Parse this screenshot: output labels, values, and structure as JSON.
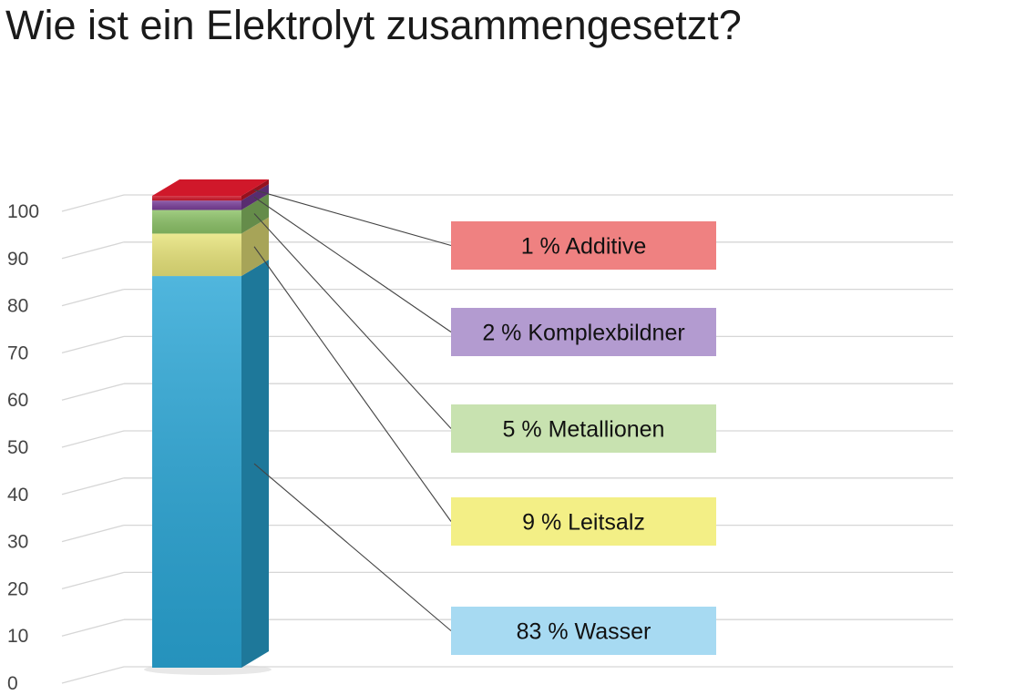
{
  "chart_data": {
    "type": "bar",
    "title": "Wie ist ein Elektrolyt zusammengesetzt?",
    "stacked": true,
    "view": "3d",
    "ylim": [
      0,
      100
    ],
    "yticks": [
      0,
      10,
      20,
      30,
      40,
      50,
      60,
      70,
      80,
      90,
      100
    ],
    "grid": true,
    "series": [
      {
        "label": "83 % Wasser",
        "value": 83,
        "color": "#2aa6d6",
        "label_color": "#a7daf2"
      },
      {
        "label": "9 % Leitsalz",
        "value": 9,
        "color": "#e8e47a",
        "label_color": "#f3ef86"
      },
      {
        "label": "5 % Metallionen",
        "value": 5,
        "color": "#8cc267",
        "label_color": "#c8e2b0"
      },
      {
        "label": "2 % Komplexbildner",
        "value": 2,
        "color": "#7a3f9a",
        "label_color": "#b39bd0"
      },
      {
        "label": "1 % Additive",
        "value": 1,
        "color": "#d0182a",
        "label_color": "#ef8181"
      }
    ]
  }
}
